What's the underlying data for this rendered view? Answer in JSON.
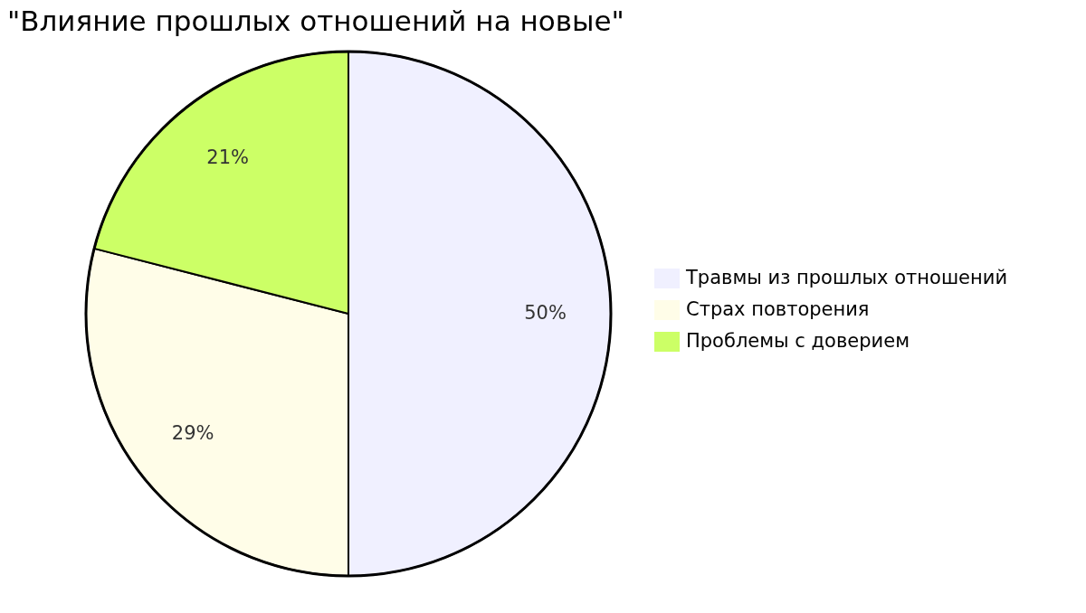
{
  "chart_data": {
    "type": "pie",
    "title": "\"Влияние прошлых отношений на новые\"",
    "categories": [
      "Травмы из прошлых отношений",
      "Страх повторения",
      "Проблемы с доверием"
    ],
    "values": [
      50,
      29,
      21
    ],
    "colors": [
      "#f0f0ff",
      "#fffde8",
      "#ccff66"
    ],
    "value_labels": [
      "50%",
      "29%",
      "21%"
    ],
    "legend": "right"
  }
}
